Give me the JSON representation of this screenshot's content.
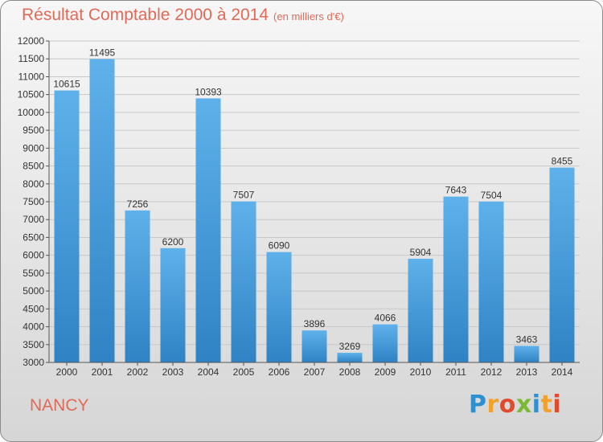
{
  "header": {
    "title": "Résultat Comptable 2000 à 2014",
    "subtitle": "(en milliers d'€)"
  },
  "footer": {
    "city": "NANCY",
    "brand_letters": [
      "P",
      "r",
      "o",
      "x",
      "i",
      "t",
      "i"
    ]
  },
  "colors": {
    "title": "#e16a57",
    "bar_light": "#5eb1ea",
    "bar_dark": "#2f83c4",
    "grid": "#c8c8c8"
  },
  "chart_data": {
    "type": "bar",
    "title": "Résultat Comptable 2000 à 2014",
    "subtitle": "(en milliers d'€)",
    "categories": [
      "2000",
      "2001",
      "2002",
      "2003",
      "2004",
      "2005",
      "2006",
      "2007",
      "2008",
      "2009",
      "2010",
      "2011",
      "2012",
      "2013",
      "2014"
    ],
    "values": [
      10615,
      11495,
      7256,
      6200,
      10393,
      7507,
      6090,
      3896,
      3269,
      4066,
      5904,
      7643,
      7504,
      3463,
      8455
    ],
    "ylim": [
      3000,
      12000
    ],
    "yticks": [
      3000,
      3500,
      4000,
      4500,
      5000,
      5500,
      6000,
      6500,
      7000,
      7500,
      8000,
      8500,
      9000,
      9500,
      10000,
      10500,
      11000,
      11500,
      12000
    ],
    "grid": true,
    "data_labels": true
  }
}
